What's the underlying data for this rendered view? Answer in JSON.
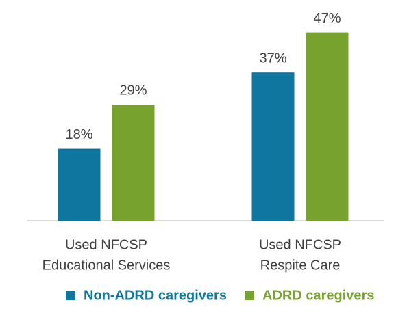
{
  "chart_data": {
    "type": "bar",
    "categories": [
      [
        "Used NFCSP",
        "Educational Services"
      ],
      [
        "Used NFCSP",
        "Respite Care"
      ]
    ],
    "series": [
      {
        "name": "Non-ADRD caregivers",
        "color": "#0f76a0",
        "values": [
          18,
          37
        ],
        "value_labels": [
          "18%",
          "37%"
        ]
      },
      {
        "name": "ADRD caregivers",
        "color": "#77a22d",
        "values": [
          29,
          47
        ],
        "value_labels": [
          "29%",
          "47%"
        ]
      }
    ],
    "ylim": [
      0,
      50
    ],
    "legend": "bottom"
  }
}
